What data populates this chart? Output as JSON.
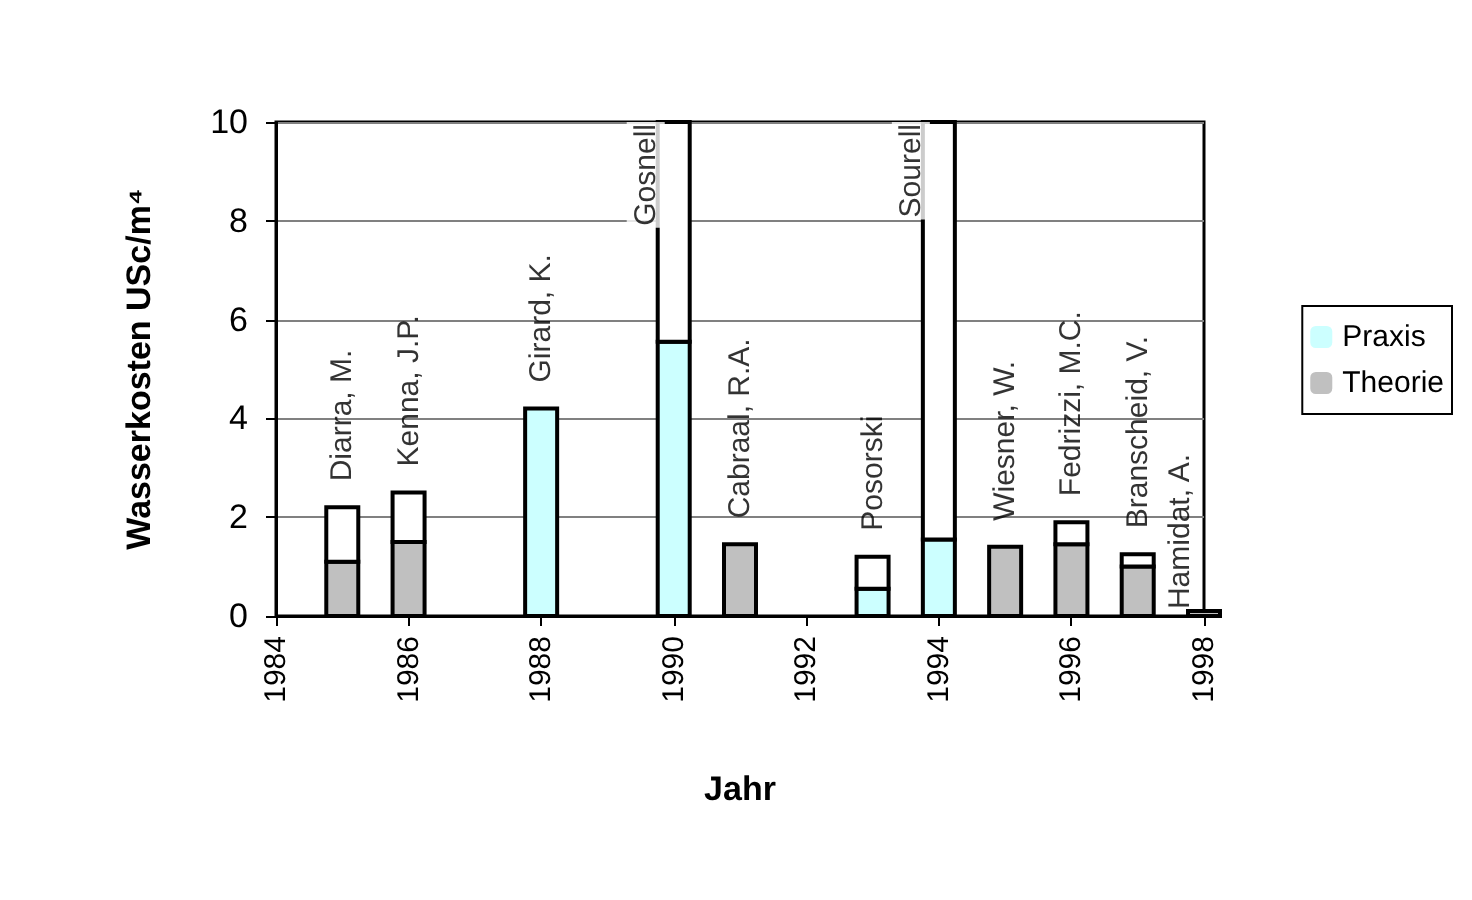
{
  "chart_data": {
    "type": "bar",
    "stacked": true,
    "xlabel": "Jahr",
    "ylabel": "Wasserkosten USc/m⁴",
    "x": [
      1985,
      1986,
      1988,
      1990,
      1991,
      1993,
      1994,
      1995,
      1996,
      1997,
      1998
    ],
    "xlim": [
      1984,
      1998
    ],
    "xticks": [
      1984,
      1986,
      1988,
      1990,
      1992,
      1994,
      1996,
      1998
    ],
    "ylim": [
      0,
      10
    ],
    "yticks": [
      0,
      2,
      4,
      6,
      8,
      10
    ],
    "grid": "y",
    "legend": "right",
    "series": [
      {
        "name": "Praxis",
        "color": "#ccffff",
        "values": [
          null,
          null,
          4.2,
          5.55,
          null,
          0.55,
          1.55,
          null,
          null,
          null,
          null
        ]
      },
      {
        "name": "Theorie",
        "color": "#c0c0c0",
        "values": [
          1.1,
          1.5,
          null,
          null,
          1.45,
          null,
          null,
          1.4,
          1.45,
          1.0,
          0.1
        ]
      },
      {
        "color": "#ffffff",
        "values": [
          1.1,
          1.0,
          null,
          4.45,
          null,
          0.65,
          8.45,
          null,
          0.45,
          0.25,
          null
        ]
      }
    ],
    "annotations": [
      {
        "text": "Diarra, M.",
        "x": 1985,
        "y": 2.2
      },
      {
        "text": "Kenna, J.P.",
        "x": 1986,
        "y": 2.5
      },
      {
        "text": "Girard, K.",
        "x": 1988,
        "y": 4.2
      },
      {
        "text": "Gosnell",
        "x": 1990,
        "y": 10
      },
      {
        "text": "Cabraal, R.A.",
        "x": 1991,
        "y": 1.45
      },
      {
        "text": "Posorski",
        "x": 1993,
        "y": 1.2
      },
      {
        "text": "Sourell",
        "x": 1994,
        "y": 10
      },
      {
        "text": "Wiesner, W.",
        "x": 1995,
        "y": 1.4
      },
      {
        "text": "Fedrizzi, M.C.",
        "x": 1996,
        "y": 1.9
      },
      {
        "text": "Branscheid, V.",
        "x": 1997,
        "y": 1.25
      },
      {
        "text": "Hamidat, A.",
        "x": 1998,
        "y": 0.1
      }
    ]
  }
}
